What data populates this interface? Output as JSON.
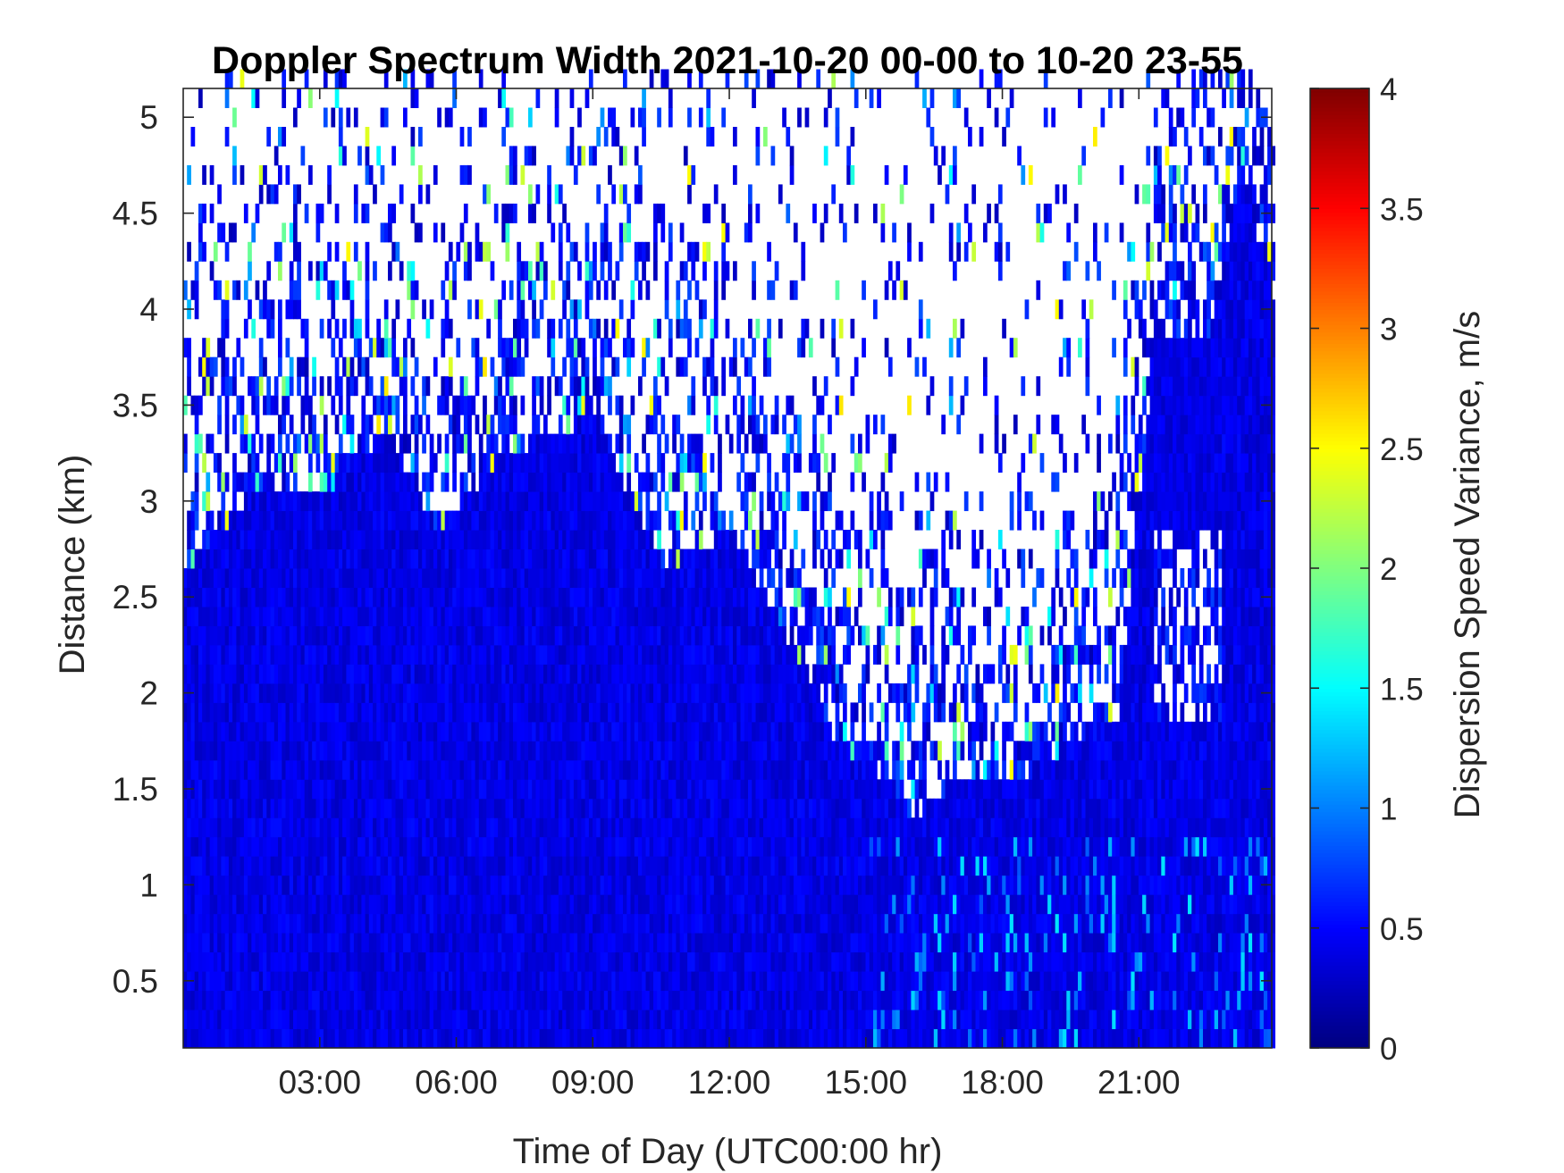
{
  "chart_data": {
    "type": "heatmap",
    "title": "Doppler Spectrum Width 2021-10-20 00-00 to 10-20 23-55",
    "xlabel": "Time of Day (UTC00:00 hr)",
    "ylabel": "Distance (km)",
    "colorbar_label": "Dispersion Speed Variance, m/s",
    "colormap": "jet",
    "xlim": [
      0,
      23.92
    ],
    "ylim": [
      0.15,
      5.15
    ],
    "clim": [
      0,
      4
    ],
    "x_ticks": [
      3,
      6,
      9,
      12,
      15,
      18,
      21
    ],
    "x_tick_labels": [
      "03:00",
      "06:00",
      "09:00",
      "12:00",
      "15:00",
      "18:00",
      "21:00"
    ],
    "y_ticks": [
      0.5,
      1,
      1.5,
      2,
      2.5,
      3,
      3.5,
      4,
      4.5,
      5
    ],
    "y_tick_labels": [
      "0.5",
      "1",
      "1.5",
      "2",
      "2.5",
      "3",
      "3.5",
      "4",
      "4.5",
      "5"
    ],
    "colorbar_ticks": [
      0,
      0.5,
      1,
      1.5,
      2,
      2.5,
      3,
      3.5,
      4
    ],
    "colorbar_tick_labels": [
      "0",
      "0.5",
      "1",
      "1.5",
      "2",
      "2.5",
      "3",
      "3.5",
      "4"
    ],
    "time_step_hours": 0.0833,
    "range_step_km": 0.1,
    "typical_value_in_valid_region": 0.4,
    "missing_value_color": "#ffffff",
    "valid_data_top_km": [
      {
        "hour": 0.0,
        "top_km": 2.6
      },
      {
        "hour": 1.5,
        "top_km": 3.0
      },
      {
        "hour": 3.0,
        "top_km": 3.0
      },
      {
        "hour": 4.5,
        "top_km": 3.3
      },
      {
        "hour": 5.5,
        "top_km": 2.8
      },
      {
        "hour": 7.0,
        "top_km": 3.2
      },
      {
        "hour": 9.0,
        "top_km": 3.4
      },
      {
        "hour": 10.5,
        "top_km": 2.6
      },
      {
        "hour": 12.0,
        "top_km": 2.8
      },
      {
        "hour": 13.8,
        "top_km": 2.0
      },
      {
        "hour": 14.3,
        "top_km": 1.7
      },
      {
        "hour": 15.0,
        "top_km": 1.6
      },
      {
        "hour": 16.0,
        "top_km": 1.3
      },
      {
        "hour": 17.0,
        "top_km": 1.5
      },
      {
        "hour": 18.5,
        "top_km": 1.5
      },
      {
        "hour": 19.5,
        "top_km": 1.7
      },
      {
        "hour": 20.5,
        "top_km": 1.8
      },
      {
        "hour": 21.3,
        "top_km": 3.8
      },
      {
        "hour": 22.5,
        "top_km": 3.8
      },
      {
        "hour": 23.2,
        "top_km": 4.7
      },
      {
        "hour": 23.92,
        "top_km": 4.0
      }
    ],
    "valid_data_gap_regions": [
      {
        "hour_start": 21.3,
        "hour_end": 22.8,
        "bottom_km": 2.8,
        "top_km": 3.8,
        "note_value": 0.4
      },
      {
        "hour_start": 21.3,
        "hour_end": 22.8,
        "bottom_km": 1.8,
        "top_km": 2.8,
        "note_value": -1
      }
    ]
  }
}
